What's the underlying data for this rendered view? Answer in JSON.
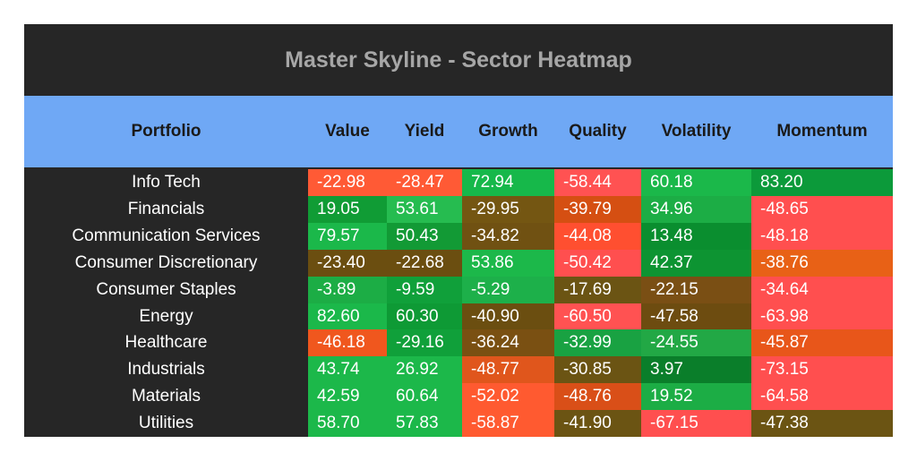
{
  "chart_data": {
    "type": "heatmap",
    "title": "Master Skyline - Sector Heatmap",
    "row_header": "Portfolio",
    "columns": [
      "Value",
      "Yield",
      "Growth",
      "Quality",
      "Volatility",
      "Momentum"
    ],
    "rows": [
      "Info Tech",
      "Financials",
      "Communication Services",
      "Consumer Discretionary",
      "Consumer Staples",
      "Energy",
      "Healthcare",
      "Industrials",
      "Materials",
      "Utilities"
    ],
    "values": [
      [
        "-22.98",
        "-28.47",
        "72.94",
        "-58.44",
        "60.18",
        "83.20"
      ],
      [
        "19.05",
        "53.61",
        "-29.95",
        "-39.79",
        "34.96",
        "-48.65"
      ],
      [
        "79.57",
        "50.43",
        "-34.82",
        "-44.08",
        "13.48",
        "-48.18"
      ],
      [
        "-23.40",
        "-22.68",
        "53.86",
        "-50.42",
        "42.37",
        "-38.76"
      ],
      [
        "-3.89",
        "-9.59",
        "-5.29",
        "-17.69",
        "-22.15",
        "-34.64"
      ],
      [
        "82.60",
        "60.30",
        "-40.90",
        "-60.50",
        "-47.58",
        "-63.98"
      ],
      [
        "-46.18",
        "-29.16",
        "-36.24",
        "-32.99",
        "-24.55",
        "-45.87"
      ],
      [
        "43.74",
        "26.92",
        "-48.77",
        "-30.85",
        "3.97",
        "-73.15"
      ],
      [
        "42.59",
        "60.64",
        "-52.02",
        "-48.76",
        "19.52",
        "-64.58"
      ],
      [
        "58.70",
        "57.83",
        "-58.87",
        "-41.90",
        "-67.15",
        "-47.38"
      ]
    ],
    "colors": [
      [
        "#ff5a35",
        "#ff5a35",
        "#16b84a",
        "#ff5252",
        "#1bb84a",
        "#0c9a3a"
      ],
      [
        "#109c35",
        "#26bc50",
        "#745612",
        "#d54f12",
        "#1cad45",
        "#ff4f4f"
      ],
      [
        "#1bb84a",
        "#129a35",
        "#705112",
        "#ff4f30",
        "#0a8e2f",
        "#ff4f4f"
      ],
      [
        "#6b4e10",
        "#6b4e10",
        "#1cb84a",
        "#ff4f4f",
        "#0d9432",
        "#e86116"
      ],
      [
        "#1cad45",
        "#10a03a",
        "#1db04a",
        "#6b5413",
        "#7a4f14",
        "#ff4f4f"
      ],
      [
        "#1bb84a",
        "#0e9a35",
        "#6b4e10",
        "#ff5252",
        "#6d4c10",
        "#ff4f4f"
      ],
      [
        "#f0571e",
        "#10a03a",
        "#7a5012",
        "#19a242",
        "#22a845",
        "#e8561a"
      ],
      [
        "#1cb84a",
        "#1cb84a",
        "#e0561c",
        "#6b5413",
        "#0a7e2a",
        "#ff4f4f"
      ],
      [
        "#1cb84a",
        "#1cb84a",
        "#ff5a30",
        "#d94f18",
        "#1cad45",
        "#ff4f4f"
      ],
      [
        "#1cb84a",
        "#1cb84a",
        "#ff5a30",
        "#6b5413",
        "#ff4f4f",
        "#6b5413"
      ]
    ]
  }
}
